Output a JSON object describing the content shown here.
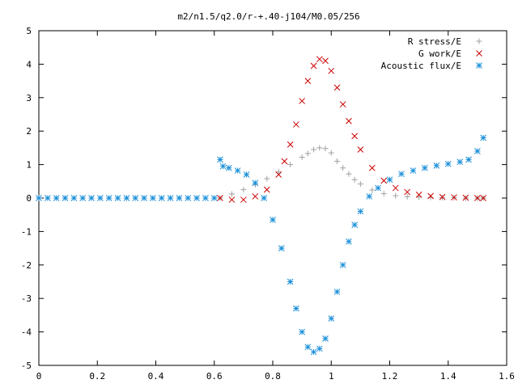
{
  "chart_data": {
    "type": "scatter",
    "title": "m2/n1.5/q2.0/r-+.40-j104/M0.05/256",
    "xlabel": "",
    "ylabel": "",
    "xlim": [
      0,
      1.6
    ],
    "ylim": [
      -5,
      5
    ],
    "x_ticks": [
      "0",
      "0.2",
      "0.4",
      "0.6",
      "0.8",
      "1",
      "1.2",
      "1.4",
      "1.6"
    ],
    "y_ticks": [
      "5",
      "4",
      "3",
      "2",
      "1",
      "0",
      "-1",
      "-2",
      "-3",
      "-4",
      "-5"
    ],
    "grid": false,
    "legend_position": "top-right",
    "series": [
      {
        "name": "R stress/E",
        "marker": "plus",
        "color": "#a0a0a0",
        "x": [
          0.62,
          0.66,
          0.7,
          0.74,
          0.78,
          0.82,
          0.86,
          0.9,
          0.92,
          0.94,
          0.96,
          0.98,
          1.0,
          1.02,
          1.04,
          1.06,
          1.08,
          1.1,
          1.14,
          1.18,
          1.22,
          1.26,
          1.3,
          1.34,
          1.38,
          1.42,
          1.46,
          1.5,
          1.52
        ],
        "y": [
          0.0,
          0.12,
          0.25,
          0.4,
          0.58,
          0.78,
          1.0,
          1.22,
          1.33,
          1.45,
          1.5,
          1.48,
          1.35,
          1.1,
          0.9,
          0.72,
          0.55,
          0.42,
          0.24,
          0.13,
          0.07,
          0.04,
          0.03,
          0.02,
          0.01,
          0.01,
          0.0,
          0.0,
          0.0
        ]
      },
      {
        "name": "G work/E",
        "marker": "cross",
        "color": "#cc0000",
        "x": [
          0.62,
          0.66,
          0.7,
          0.74,
          0.78,
          0.82,
          0.84,
          0.86,
          0.88,
          0.9,
          0.92,
          0.94,
          0.96,
          0.98,
          1.0,
          1.02,
          1.04,
          1.06,
          1.08,
          1.1,
          1.14,
          1.18,
          1.22,
          1.26,
          1.3,
          1.34,
          1.38,
          1.42,
          1.46,
          1.5,
          1.52
        ],
        "y": [
          0.0,
          -0.05,
          -0.05,
          0.05,
          0.25,
          0.7,
          1.1,
          1.6,
          2.2,
          2.9,
          3.5,
          3.95,
          4.15,
          4.1,
          3.8,
          3.3,
          2.8,
          2.3,
          1.85,
          1.45,
          0.9,
          0.52,
          0.3,
          0.18,
          0.1,
          0.06,
          0.03,
          0.02,
          0.01,
          0.0,
          0.0
        ]
      },
      {
        "name": "Acoustic flux/E",
        "marker": "star",
        "color": "#1a8fd8",
        "x": [
          0.0,
          0.03,
          0.06,
          0.09,
          0.12,
          0.15,
          0.18,
          0.21,
          0.24,
          0.27,
          0.3,
          0.33,
          0.36,
          0.39,
          0.42,
          0.45,
          0.48,
          0.51,
          0.54,
          0.57,
          0.6,
          0.62,
          0.63,
          0.65,
          0.68,
          0.71,
          0.74,
          0.77,
          0.8,
          0.83,
          0.86,
          0.88,
          0.9,
          0.92,
          0.94,
          0.96,
          0.98,
          1.0,
          1.02,
          1.04,
          1.06,
          1.08,
          1.1,
          1.13,
          1.16,
          1.2,
          1.24,
          1.28,
          1.32,
          1.36,
          1.4,
          1.44,
          1.47,
          1.5,
          1.52
        ],
        "y": [
          0,
          0,
          0,
          0,
          0,
          0,
          0,
          0,
          0,
          0,
          0,
          0,
          0,
          0,
          0,
          0,
          0,
          0,
          0,
          0,
          0,
          1.15,
          0.95,
          0.9,
          0.82,
          0.7,
          0.45,
          0.0,
          -0.65,
          -1.5,
          -2.5,
          -3.3,
          -4.0,
          -4.45,
          -4.6,
          -4.5,
          -4.2,
          -3.6,
          -2.8,
          -2.0,
          -1.3,
          -0.8,
          -0.4,
          0.05,
          0.3,
          0.55,
          0.72,
          0.82,
          0.9,
          0.97,
          1.02,
          1.08,
          1.15,
          1.4,
          1.8
        ]
      }
    ]
  }
}
